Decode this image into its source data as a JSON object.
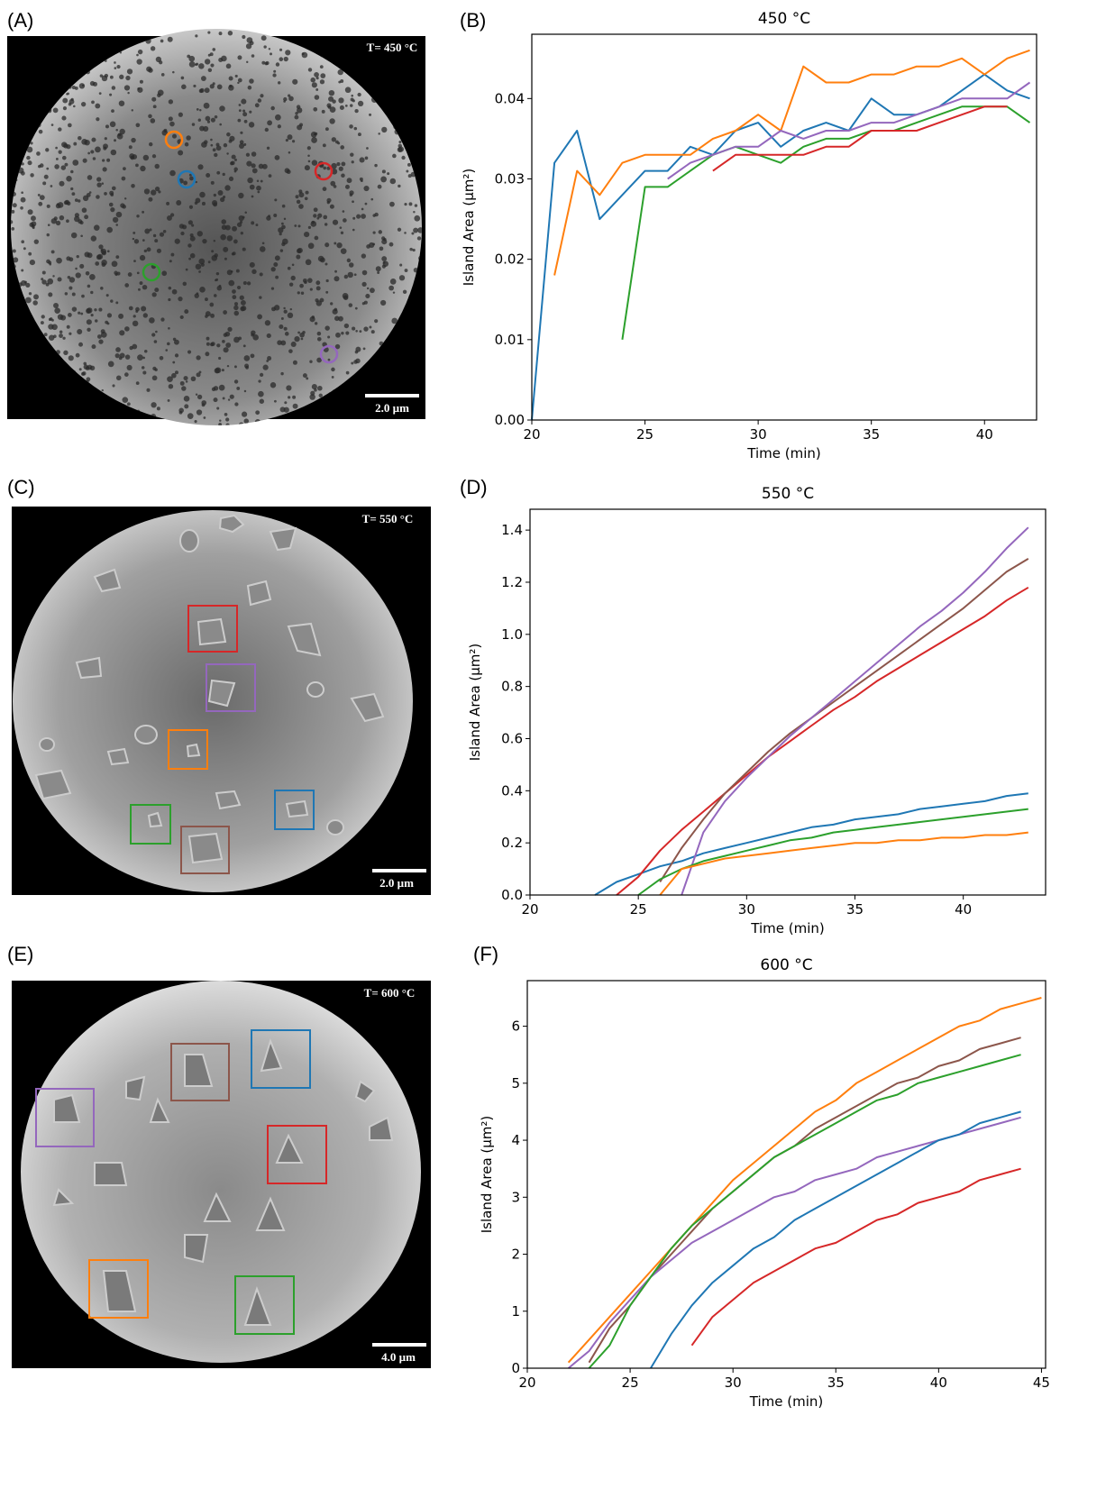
{
  "images": [
    {
      "panel_label": "(A)",
      "temperature": "T= 450 °C",
      "scale_bar": "2.0 µm"
    },
    {
      "panel_label": "(C)",
      "temperature": "T= 550 °C",
      "scale_bar": "2.0 µm"
    },
    {
      "panel_label": "(E)",
      "temperature": "T= 600 °C",
      "scale_bar": "4.0 µm"
    }
  ],
  "chart_data": [
    {
      "type": "line",
      "panel_label": "(B)",
      "title": "450 °C",
      "xlabel": "Time (min)",
      "ylabel": "Island Area (μm²)",
      "xlim": [
        20,
        42.3
      ],
      "ylim": [
        0,
        0.048
      ],
      "xticks": [
        20,
        25,
        30,
        35,
        40
      ],
      "yticks": [
        {
          "value": 0,
          "label": "0.00"
        },
        0.01,
        0.02,
        0.03,
        0.04
      ],
      "x": [
        20,
        21,
        22,
        23,
        24,
        25,
        26,
        27,
        28,
        29,
        30,
        31,
        32,
        33,
        34,
        35,
        36,
        37,
        38,
        39,
        40,
        41,
        42
      ],
      "series": [
        {
          "color": "#1f77b4",
          "values": [
            0,
            0.032,
            0.036,
            0.025,
            0.028,
            0.031,
            0.031,
            0.034,
            0.033,
            0.036,
            0.037,
            0.034,
            0.036,
            0.037,
            0.036,
            0.04,
            0.038,
            0.038,
            0.039,
            0.041,
            0.043,
            0.041,
            0.04
          ]
        },
        {
          "color": "#ff7f0e",
          "values": [
            null,
            0.018,
            0.031,
            0.028,
            0.032,
            0.033,
            0.033,
            0.033,
            0.035,
            0.036,
            0.038,
            0.036,
            0.044,
            0.042,
            0.042,
            0.043,
            0.043,
            0.044,
            0.044,
            0.045,
            0.043,
            0.045,
            0.046
          ]
        },
        {
          "color": "#2ca02c",
          "values": [
            null,
            null,
            null,
            null,
            0.01,
            0.029,
            0.029,
            0.031,
            0.033,
            0.034,
            0.033,
            0.032,
            0.034,
            0.035,
            0.035,
            0.036,
            0.036,
            0.037,
            0.038,
            0.039,
            0.039,
            0.039,
            0.037
          ]
        },
        {
          "color": "#d62728",
          "values": [
            null,
            null,
            null,
            null,
            null,
            null,
            null,
            null,
            0.031,
            0.033,
            0.033,
            0.033,
            0.033,
            0.034,
            0.034,
            0.036,
            0.036,
            0.036,
            0.037,
            0.038,
            0.039,
            0.039,
            null
          ]
        },
        {
          "color": "#9467bd",
          "values": [
            null,
            null,
            null,
            null,
            null,
            null,
            0.03,
            0.032,
            0.033,
            0.034,
            0.034,
            0.036,
            0.035,
            0.036,
            0.036,
            0.037,
            0.037,
            0.038,
            0.039,
            0.04,
            0.04,
            0.04,
            0.042
          ]
        }
      ]
    },
    {
      "type": "line",
      "panel_label": "(D)",
      "title": "550 °C",
      "xlabel": "Time (min)",
      "ylabel": "Island Area (μm²)",
      "xlim": [
        20,
        43.8
      ],
      "ylim": [
        0,
        1.48
      ],
      "xticks": [
        20,
        25,
        30,
        35,
        40
      ],
      "yticks": [
        {
          "value": 0,
          "label": "0.0"
        },
        0.2,
        0.4,
        0.6,
        0.8,
        {
          "value": 1,
          "label": "1.0"
        },
        1.2,
        1.4
      ],
      "x": [
        23,
        24,
        25,
        26,
        27,
        28,
        29,
        30,
        31,
        32,
        33,
        34,
        35,
        36,
        37,
        38,
        39,
        40,
        41,
        42,
        43
      ],
      "series": [
        {
          "color": "#1f77b4",
          "values": [
            0,
            0.05,
            0.08,
            0.11,
            0.13,
            0.16,
            0.18,
            0.2,
            0.22,
            0.24,
            0.26,
            0.27,
            0.29,
            0.3,
            0.31,
            0.33,
            0.34,
            0.35,
            0.36,
            0.38,
            0.39
          ]
        },
        {
          "color": "#d62728",
          "values": [
            null,
            0,
            0.07,
            0.17,
            0.25,
            0.32,
            0.39,
            0.46,
            0.53,
            0.59,
            0.65,
            0.71,
            0.76,
            0.82,
            0.87,
            0.92,
            0.97,
            1.02,
            1.07,
            1.13,
            1.18
          ]
        },
        {
          "color": "#8c564b",
          "values": [
            null,
            null,
            null,
            0.05,
            0.18,
            0.29,
            0.39,
            0.47,
            0.55,
            0.62,
            0.68,
            0.74,
            0.8,
            0.86,
            0.92,
            0.98,
            1.04,
            1.1,
            1.17,
            1.24,
            1.29
          ]
        },
        {
          "color": "#9467bd",
          "values": [
            null,
            null,
            null,
            null,
            0,
            0.24,
            0.36,
            0.45,
            0.53,
            0.61,
            0.68,
            0.75,
            0.82,
            0.89,
            0.96,
            1.03,
            1.09,
            1.16,
            1.24,
            1.33,
            1.41
          ]
        },
        {
          "color": "#2ca02c",
          "values": [
            null,
            null,
            0,
            0.06,
            0.1,
            0.13,
            0.15,
            0.17,
            0.19,
            0.21,
            0.22,
            0.24,
            0.25,
            0.26,
            0.27,
            0.28,
            0.29,
            0.3,
            0.31,
            0.32,
            0.33
          ]
        },
        {
          "color": "#ff7f0e",
          "values": [
            null,
            null,
            null,
            0,
            0.1,
            0.12,
            0.14,
            0.15,
            0.16,
            0.17,
            0.18,
            0.19,
            0.2,
            0.2,
            0.21,
            0.21,
            0.22,
            0.22,
            0.23,
            0.23,
            0.24
          ]
        }
      ]
    },
    {
      "type": "line",
      "panel_label": "(F)",
      "title": "600 °C",
      "xlabel": "Time (min)",
      "ylabel": "Island Area (μm²)",
      "xlim": [
        20,
        45.2
      ],
      "ylim": [
        0,
        6.8
      ],
      "xticks": [
        20,
        25,
        30,
        35,
        40,
        45
      ],
      "yticks": [
        0,
        1,
        2,
        3,
        4,
        5,
        6
      ],
      "x": [
        22,
        23,
        24,
        25,
        26,
        27,
        28,
        29,
        30,
        31,
        32,
        33,
        34,
        35,
        36,
        37,
        38,
        39,
        40,
        41,
        42,
        43,
        44,
        45
      ],
      "series": [
        {
          "color": "#ff7f0e",
          "values": [
            0.1,
            0.5,
            0.9,
            1.3,
            1.7,
            2.1,
            2.5,
            2.9,
            3.3,
            3.6,
            3.9,
            4.2,
            4.5,
            4.7,
            5.0,
            5.2,
            5.4,
            5.6,
            5.8,
            6.0,
            6.1,
            6.3,
            6.4,
            6.5
          ]
        },
        {
          "color": "#8c564b",
          "values": [
            null,
            0.1,
            0.7,
            1.1,
            1.6,
            2.0,
            2.4,
            2.8,
            3.1,
            3.4,
            3.7,
            3.9,
            4.2,
            4.4,
            4.6,
            4.8,
            5.0,
            5.1,
            5.3,
            5.4,
            5.6,
            5.7,
            5.8,
            null
          ]
        },
        {
          "color": "#9467bd",
          "values": [
            0,
            0.3,
            0.8,
            1.2,
            1.6,
            1.9,
            2.2,
            2.4,
            2.6,
            2.8,
            3.0,
            3.1,
            3.3,
            3.4,
            3.5,
            3.7,
            3.8,
            3.9,
            4.0,
            4.1,
            4.2,
            4.3,
            4.4,
            null
          ]
        },
        {
          "color": "#2ca02c",
          "values": [
            null,
            0,
            0.4,
            1.1,
            1.6,
            2.1,
            2.5,
            2.8,
            3.1,
            3.4,
            3.7,
            3.9,
            4.1,
            4.3,
            4.5,
            4.7,
            4.8,
            5.0,
            5.1,
            5.2,
            5.3,
            5.4,
            5.5,
            null
          ]
        },
        {
          "color": "#1f77b4",
          "values": [
            null,
            null,
            null,
            null,
            0,
            0.6,
            1.1,
            1.5,
            1.8,
            2.1,
            2.3,
            2.6,
            2.8,
            3.0,
            3.2,
            3.4,
            3.6,
            3.8,
            4.0,
            4.1,
            4.3,
            4.4,
            4.5,
            null
          ]
        },
        {
          "color": "#d62728",
          "values": [
            null,
            null,
            null,
            null,
            null,
            null,
            0.4,
            0.9,
            1.2,
            1.5,
            1.7,
            1.9,
            2.1,
            2.2,
            2.4,
            2.6,
            2.7,
            2.9,
            3.0,
            3.1,
            3.3,
            3.4,
            3.5,
            null
          ]
        }
      ]
    }
  ]
}
